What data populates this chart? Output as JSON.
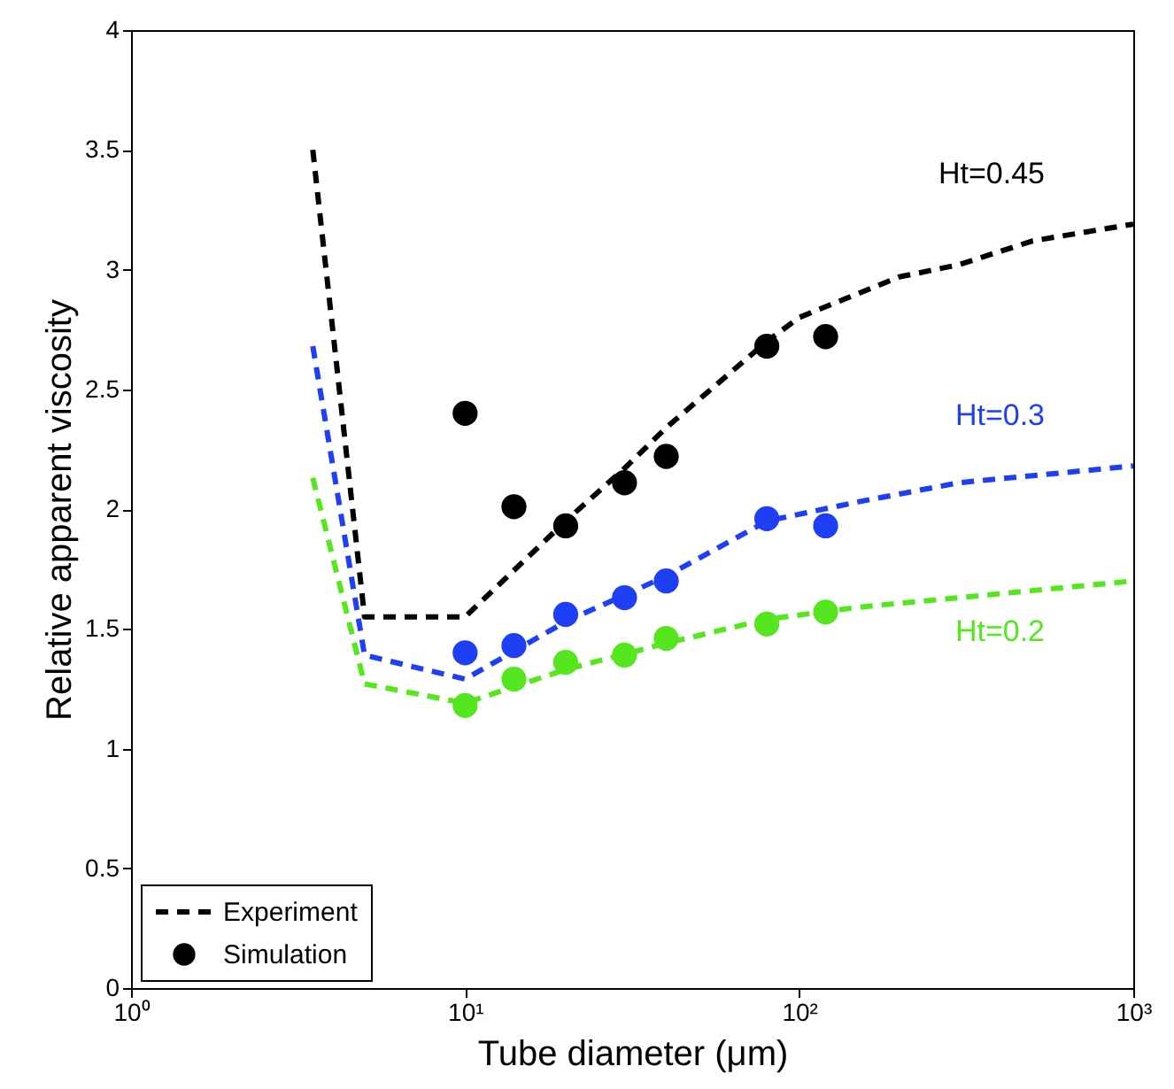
{
  "chart_data": {
    "type": "line",
    "xlabel": "Tube diameter (μm)",
    "ylabel": "Relative apparent viscosity",
    "log": "x",
    "xlim": [
      1,
      1000
    ],
    "xticks": [
      {
        "value": 1,
        "label": "10⁰"
      },
      {
        "value": 10,
        "label": "10¹"
      },
      {
        "value": 100,
        "label": "10²"
      },
      {
        "value": 1000,
        "label": "10³"
      }
    ],
    "ylim": [
      0,
      4
    ],
    "yticks": [
      0,
      0.5,
      1,
      1.5,
      2,
      2.5,
      3,
      3.5,
      4
    ],
    "grid": false,
    "legend": "bottom left",
    "line_style": "dashed",
    "series": [
      {
        "name": "Experiment",
        "color": "#000000",
        "x": [
          3.5,
          5,
          10,
          20,
          30,
          40,
          80,
          100,
          200,
          300,
          500,
          1000
        ],
        "values": [
          3.5,
          1.55,
          1.55,
          1.95,
          2.17,
          2.34,
          2.7,
          2.8,
          2.97,
          3.02,
          3.12,
          3.19
        ]
      },
      {
        "color": "#1f3ff5",
        "x": [
          3.5,
          5,
          10,
          20,
          40,
          80,
          150,
          300,
          1000
        ],
        "values": [
          2.68,
          1.39,
          1.29,
          1.53,
          1.72,
          1.95,
          2.03,
          2.11,
          2.18
        ]
      },
      {
        "color": "#55e61f",
        "x": [
          3.5,
          5,
          10,
          20,
          40,
          80,
          150,
          300,
          1000
        ],
        "values": [
          2.13,
          1.27,
          1.19,
          1.33,
          1.44,
          1.54,
          1.59,
          1.63,
          1.7
        ]
      },
      {
        "name": "Simulation",
        "type": "scatter",
        "marker": "circle",
        "color": "#000000",
        "x": [
          10,
          14,
          20,
          30,
          40,
          80,
          120
        ],
        "values": [
          2.4,
          2.01,
          1.93,
          2.11,
          2.22,
          2.68,
          2.72
        ]
      },
      {
        "type": "scatter",
        "marker": "circle",
        "color": "#1f3ff5",
        "x": [
          10,
          14,
          20,
          30,
          40,
          80,
          120
        ],
        "values": [
          1.4,
          1.43,
          1.56,
          1.63,
          1.7,
          1.96,
          1.93
        ]
      },
      {
        "type": "scatter",
        "marker": "circle",
        "color": "#55e61f",
        "x": [
          10,
          14,
          20,
          30,
          40,
          80,
          120
        ],
        "values": [
          1.18,
          1.29,
          1.36,
          1.39,
          1.46,
          1.52,
          1.57
        ]
      }
    ],
    "annotations": [
      "Ht=0.45",
      "Ht=0.3",
      "Ht=0.2"
    ]
  }
}
